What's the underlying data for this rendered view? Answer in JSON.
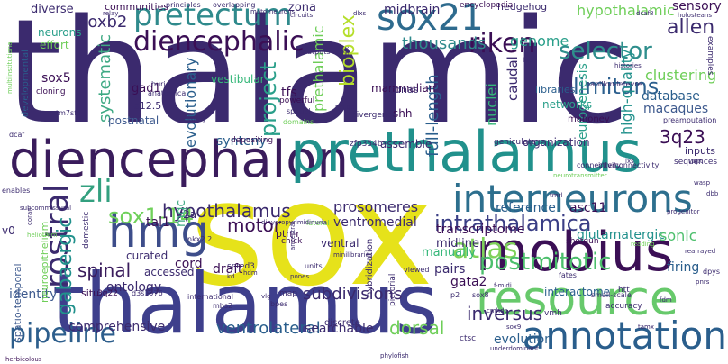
{
  "palette": {
    "background": "#ffffff",
    "dark_purple": "#440154",
    "indigo": "#3b528b",
    "blue": "#31688e",
    "teal": "#21918c",
    "green": "#35b779",
    "light_green": "#6ece58",
    "lime": "#b5de2b",
    "yellow": "#fde725"
  },
  "words": [
    {
      "text": "thalamic",
      "color": "#3b2a6e"
    },
    {
      "text": "sox",
      "color": "#e6e21a"
    },
    {
      "text": "thalamus",
      "color": "#3e3f8c"
    },
    {
      "text": "diencephalon",
      "color": "#3a1c5c"
    },
    {
      "text": "prethalamus",
      "color": "#21918c"
    },
    {
      "text": "mobius",
      "color": "#3b0f55"
    },
    {
      "text": "resource",
      "color": "#67c96b"
    },
    {
      "text": "annotation",
      "color": "#2a5e8c"
    },
    {
      "text": "interneurons",
      "color": "#2d6f8e"
    },
    {
      "text": "hmg",
      "color": "#3d4d8a"
    },
    {
      "text": "sox21",
      "color": "#2e6b8e"
    },
    {
      "text": "pretectum",
      "color": "#2f8a8c"
    },
    {
      "text": "diencephalic",
      "color": "#3b0f55"
    },
    {
      "text": "zli",
      "color": "#33a07f"
    },
    {
      "text": "sox1-14",
      "color": "#6fd05a"
    },
    {
      "text": "rostral",
      "color": "#3b2a6e"
    },
    {
      "text": "atlas",
      "color": "#7fd25a"
    },
    {
      "text": "pipeline",
      "color": "#2d5e8c"
    },
    {
      "text": "postmitotic",
      "color": "#4cbf6c"
    },
    {
      "text": "intrathalamica",
      "color": "#3a3e85"
    },
    {
      "text": "selector",
      "color": "#2e8e8c"
    },
    {
      "text": "limitans",
      "color": "#2c5f8e"
    },
    {
      "text": "riken",
      "color": "#3b0f55"
    },
    {
      "text": "project",
      "color": "#2a9f8a"
    },
    {
      "text": "hypothalamus",
      "color": "#3b2a6e"
    },
    {
      "text": "subdivisions",
      "color": "#3b2a6e"
    },
    {
      "text": "ventrolateral",
      "color": "#2a5e8c"
    },
    {
      "text": "inversus",
      "color": "#3b2a6e"
    },
    {
      "text": "motor",
      "color": "#3b0f55"
    },
    {
      "text": "spinal",
      "color": "#3a1c5c"
    },
    {
      "text": "gabaergic",
      "color": "#21918c"
    },
    {
      "text": "soxb2",
      "color": "#3b2a6e"
    },
    {
      "text": "bioplex",
      "color": "#b5de2b"
    },
    {
      "text": "thousands",
      "color": "#2f8a8c"
    },
    {
      "text": "genome",
      "color": "#2a9f8a"
    },
    {
      "text": "allen",
      "color": "#3b2a6e"
    },
    {
      "text": "sensory",
      "color": "#3b0f55"
    },
    {
      "text": "hypothalamic",
      "color": "#6ece58"
    },
    {
      "text": "communities",
      "color": "#3b0f55"
    },
    {
      "text": "diverse",
      "color": "#3b2a6e"
    },
    {
      "text": "midbrain",
      "color": "#3b2a6e"
    },
    {
      "text": "zona",
      "color": "#3b2a6e"
    },
    {
      "text": "systematic",
      "color": "#3ea983"
    },
    {
      "text": "evolutionary",
      "color": "#2a5e8c"
    },
    {
      "text": "tfs",
      "color": "#3b0f55"
    },
    {
      "text": "gad1",
      "color": "#3b0f55"
    },
    {
      "text": "sox5",
      "color": "#3b0f55"
    },
    {
      "text": "prethalamic",
      "color": "#6ece58"
    },
    {
      "text": "full-length",
      "color": "#2a5e8c"
    },
    {
      "text": "nuclei",
      "color": "#35b779"
    },
    {
      "text": "caudal",
      "color": "#3b2a6e"
    },
    {
      "text": "neurogenesis",
      "color": "#2a9f8a"
    },
    {
      "text": "high-quality",
      "color": "#21918c"
    },
    {
      "text": "database",
      "color": "#2a5e8c"
    },
    {
      "text": "macaques",
      "color": "#3e5a8e"
    },
    {
      "text": "clustering",
      "color": "#6ece58"
    },
    {
      "text": "3q23",
      "color": "#3b0f55"
    },
    {
      "text": "synteny",
      "color": "#2a5e8c"
    },
    {
      "text": "prosomeres",
      "color": "#3b2a6e"
    },
    {
      "text": "reference",
      "color": "#2a5e8c"
    },
    {
      "text": "asc11",
      "color": "#3b0f55"
    },
    {
      "text": "midline",
      "color": "#3b2a6e"
    },
    {
      "text": "transcriptome",
      "color": "#3b0f55"
    },
    {
      "text": "glutamatergic",
      "color": "#21918c"
    },
    {
      "text": "sonic",
      "color": "#4cbf6c"
    },
    {
      "text": "firing",
      "color": "#2a5e8c"
    },
    {
      "text": "manually",
      "color": "#35b779"
    },
    {
      "text": "gata2",
      "color": "#3b0f55"
    },
    {
      "text": "pairs",
      "color": "#3b2a6e"
    },
    {
      "text": "ontology",
      "color": "#3b2a6e"
    },
    {
      "text": "draft",
      "color": "#3b0f55"
    },
    {
      "text": "cord",
      "color": "#3b0f55"
    },
    {
      "text": "identity",
      "color": "#3e5a8e"
    },
    {
      "text": "comprehensive",
      "color": "#3b2a6e"
    },
    {
      "text": "searchable",
      "color": "#3b2a6e"
    },
    {
      "text": "dorsal",
      "color": "#6ece58"
    },
    {
      "text": "evolution",
      "color": "#2a5e8c"
    },
    {
      "text": "interactome",
      "color": "#2a5e8c"
    },
    {
      "text": "hedgehog",
      "color": "#3b2a6e"
    },
    {
      "text": "encyclopedia",
      "color": "#3b0f55"
    },
    {
      "text": "neurons",
      "color": "#2a9f8a"
    },
    {
      "text": "effort",
      "color": "#6ece58"
    },
    {
      "text": "vestibular",
      "color": "#35b779"
    },
    {
      "text": "mammalian",
      "color": "#3b0f55"
    },
    {
      "text": "networks",
      "color": "#2a9f8a"
    },
    {
      "text": "mahoney",
      "color": "#3b0f55"
    },
    {
      "text": "organization",
      "color": "#3b2a6e"
    },
    {
      "text": "ventromedial",
      "color": "#3b2a6e"
    },
    {
      "text": "curated",
      "color": "#3b2a6e"
    },
    {
      "text": "accessed",
      "color": "#3b2a6e"
    },
    {
      "text": "postnatal",
      "color": "#3e5a8e"
    },
    {
      "text": "e12.5",
      "color": "#3b2a6e"
    },
    {
      "text": "v2a",
      "color": "#3b2a6e"
    },
    {
      "text": "tal1",
      "color": "#3b0f55"
    },
    {
      "text": "mgc",
      "color": "#3ea983"
    },
    {
      "text": "ventral",
      "color": "#3b2a6e"
    },
    {
      "text": "libraries",
      "color": "#2a5e8c"
    },
    {
      "text": "cdnas",
      "color": "#3b2a6e"
    },
    {
      "text": "shh",
      "color": "#3b0f55"
    },
    {
      "text": "spatio-temporal",
      "color": "#3e5a8e"
    },
    {
      "text": "neuroepithelium",
      "color": "#6ece58"
    },
    {
      "text": "developmental",
      "color": "#2a5e8c"
    },
    {
      "text": "herbicolous",
      "color": "#3b0f55"
    },
    {
      "text": "situ",
      "color": "#3b0f55"
    },
    {
      "text": "v0",
      "color": "#3b2a6e"
    },
    {
      "text": "pth-r",
      "color": "#3b0f55"
    },
    {
      "text": "assemble",
      "color": "#3b2a6e"
    },
    {
      "text": "inputs",
      "color": "#3b2a6e"
    },
    {
      "text": "sequences",
      "color": "#3b2a6e"
    },
    {
      "text": "examples",
      "color": "#3b2a6e"
    },
    {
      "text": "cloning",
      "color": "#3b0f55"
    },
    {
      "text": "powerful",
      "color": "#3b0f55"
    },
    {
      "text": "depositing",
      "color": "#3b0f55"
    },
    {
      "text": "hybridization",
      "color": "#3b2a6e"
    },
    {
      "text": "shotgun",
      "color": "#3b0f55"
    },
    {
      "text": "discrete",
      "color": "#3b2a6e"
    },
    {
      "text": "pictorial",
      "color": "#3b2a6e"
    },
    {
      "text": "ctsc",
      "color": "#3b2a6e"
    },
    {
      "text": "htt",
      "color": "#3b2a6e"
    },
    {
      "text": "vmh",
      "color": "#3b2a6e"
    },
    {
      "text": "accuracy",
      "color": "#3b2a6e"
    },
    {
      "text": "small-scale",
      "color": "#3b2a6e"
    },
    {
      "text": "fates",
      "color": "#3b2a6e"
    },
    {
      "text": "viewed",
      "color": "#3b2a6e"
    },
    {
      "text": "chick",
      "color": "#3b0f55"
    },
    {
      "text": "spred3",
      "color": "#3b2a6e"
    },
    {
      "text": "units",
      "color": "#3b2a6e"
    },
    {
      "text": "map",
      "color": "#3b2a6e"
    },
    {
      "text": "bpes",
      "color": "#3b2a6e"
    },
    {
      "text": "international",
      "color": "#3b2a6e"
    },
    {
      "text": "mbs2",
      "color": "#3b2a6e"
    },
    {
      "text": "d3s1576",
      "color": "#3b2a6e"
    },
    {
      "text": "3q22",
      "color": "#3b0f55"
    },
    {
      "text": "domestic",
      "color": "#3b2a6e"
    },
    {
      "text": "nkx2.2",
      "color": "#3b2a6e"
    },
    {
      "text": "p2",
      "color": "#3b2a6e"
    },
    {
      "text": "lateral",
      "color": "#6ece58"
    },
    {
      "text": "connectivity",
      "color": "#3b2a6e"
    },
    {
      "text": "interconnectivity",
      "color": "#3b2a6e"
    },
    {
      "text": "geniculate",
      "color": "#3b2a6e"
    },
    {
      "text": "zfp354b",
      "color": "#3b2a6e"
    },
    {
      "text": "divergence",
      "color": "#3b2a6e"
    },
    {
      "text": "spatial",
      "color": "#3b2a6e"
    },
    {
      "text": "domains",
      "color": "#6ece58"
    },
    {
      "text": "outputs",
      "color": "#3b2a6e"
    },
    {
      "text": "anatomical",
      "color": "#3b2a6e"
    },
    {
      "text": "anatomy",
      "color": "#3b2a6e"
    },
    {
      "text": "huri",
      "color": "#3b2a6e"
    },
    {
      "text": "tm7sf4",
      "color": "#3b2a6e"
    },
    {
      "text": "dcaf",
      "color": "#3b2a6e"
    },
    {
      "text": "relay",
      "color": "#3b2a6e"
    },
    {
      "text": "principles",
      "color": "#3b2a6e"
    },
    {
      "text": "overlapping",
      "color": "#3b2a6e"
    },
    {
      "text": "motorneurons",
      "color": "#3b2a6e"
    },
    {
      "text": "circuits",
      "color": "#3b2a6e"
    },
    {
      "text": "dlxs",
      "color": "#3b2a6e"
    },
    {
      "text": "dcaf8",
      "color": "#3b2a6e"
    },
    {
      "text": "holosteans",
      "color": "#3b2a6e"
    },
    {
      "text": "papillon-lefevre",
      "color": "#3b2a6e"
    },
    {
      "text": "histories",
      "color": "#3b2a6e"
    },
    {
      "text": "preamputation",
      "color": "#3b2a6e"
    },
    {
      "text": "progenitor",
      "color": "#3b2a6e"
    },
    {
      "text": "reading",
      "color": "#6ece58"
    },
    {
      "text": "rearrayed",
      "color": "#3b2a6e"
    },
    {
      "text": "dpys",
      "color": "#3b2a6e"
    },
    {
      "text": "enables",
      "color": "#3b2a6e"
    },
    {
      "text": "underlie",
      "color": "#3b2a6e"
    },
    {
      "text": "multiinstitutional",
      "color": "#6ece58"
    },
    {
      "text": "coran",
      "color": "#3b2a6e"
    },
    {
      "text": "heliotrem",
      "color": "#6ece58"
    },
    {
      "text": "phylofish",
      "color": "#3b2a6e"
    },
    {
      "text": "underdominant",
      "color": "#3b2a6e"
    },
    {
      "text": "f-midi",
      "color": "#3b2a6e"
    },
    {
      "text": "cmhde",
      "color": "#3b2a6e"
    },
    {
      "text": "minilibraries",
      "color": "#3b2a6e"
    },
    {
      "text": "dihydropyrimidinuria",
      "color": "#3b2a6e"
    },
    {
      "text": "neurotransmitter",
      "color": "#6ece58"
    },
    {
      "text": "subcommissural",
      "color": "#3b2a6e"
    },
    {
      "text": "ancestral",
      "color": "#3b2a6e"
    },
    {
      "text": "vlg",
      "color": "#3b2a6e"
    },
    {
      "text": "pones",
      "color": "#3b2a6e"
    },
    {
      "text": "hdm",
      "color": "#3b2a6e"
    },
    {
      "text": "kd",
      "color": "#3b2a6e"
    },
    {
      "text": "wasp",
      "color": "#3b2a6e"
    },
    {
      "text": "lxs",
      "color": "#3b2a6e"
    },
    {
      "text": "pnrs",
      "color": "#3b2a6e"
    },
    {
      "text": "fdm",
      "color": "#3b2a6e"
    },
    {
      "text": "tamx",
      "color": "#3b2a6e"
    },
    {
      "text": "sox8",
      "color": "#3b2a6e"
    },
    {
      "text": "sox9",
      "color": "#3b2a6e"
    },
    {
      "text": "chalk",
      "color": "#3b2a6e"
    },
    {
      "text": "lapt",
      "color": "#3b2a6e"
    },
    {
      "text": "vapt",
      "color": "#3b2a6e"
    },
    {
      "text": "n.s.gp",
      "color": "#3b2a6e"
    },
    {
      "text": "dbb",
      "color": "#3b2a6e"
    },
    {
      "text": "tmrl",
      "color": "#3b2a6e"
    }
  ]
}
